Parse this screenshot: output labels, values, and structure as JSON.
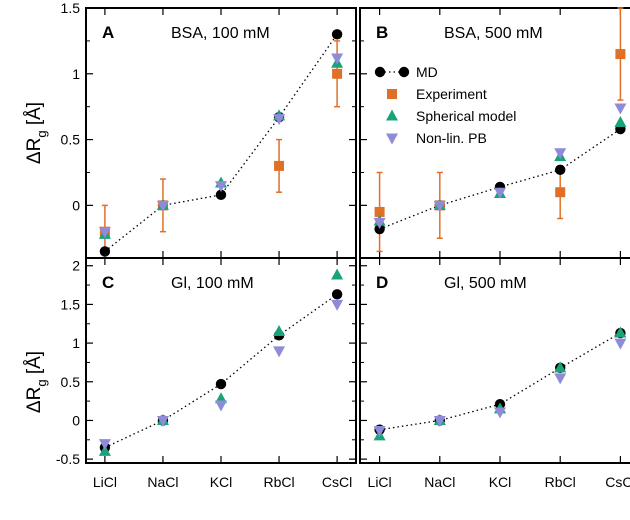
{
  "ylabel_main": "ΔR",
  "ylabel_sub": "g",
  "ylabel_unit": " [Å]",
  "categories": [
    "LiCl",
    "NaCl",
    "KCl",
    "RbCl",
    "CsCl"
  ],
  "legend": {
    "md": "MD",
    "experiment": "Experiment",
    "spherical": "Spherical model",
    "nonlin": "Non-lin. PB"
  },
  "colors": {
    "md": "#000000",
    "experiment": "#e07028",
    "spherical": "#1aa37a",
    "nonlin": "#8e8cd8"
  },
  "chart_data": [
    {
      "type": "scatter",
      "panel_letter": "A",
      "title": "BSA, 100 mM",
      "ylim": [
        -0.4,
        1.5
      ],
      "yticks": [
        0,
        0.5,
        1,
        1.5
      ],
      "ytick_labels": [
        "0",
        "0.5",
        "1",
        "1.5"
      ],
      "show_legend": false,
      "series": {
        "md": [
          -0.35,
          0.0,
          0.08,
          0.67,
          1.3
        ],
        "experiment": [
          -0.2,
          0.0,
          null,
          0.3,
          1.0
        ],
        "experiment_err": [
          0.2,
          0.2,
          null,
          0.2,
          0.25
        ],
        "spherical": [
          -0.22,
          0.0,
          0.17,
          0.68,
          1.08
        ],
        "nonlin": [
          -0.2,
          0.0,
          0.15,
          0.66,
          1.12
        ]
      }
    },
    {
      "type": "scatter",
      "panel_letter": "B",
      "title": "BSA, 500 mM",
      "ylim": [
        -0.4,
        1.5
      ],
      "yticks": [
        0,
        0.5,
        1,
        1.5
      ],
      "ytick_labels": [
        "",
        "",
        "",
        ""
      ],
      "show_legend": true,
      "series": {
        "md": [
          -0.18,
          0.0,
          0.14,
          0.27,
          0.58
        ],
        "experiment": [
          -0.05,
          0.0,
          null,
          0.1,
          1.15
        ],
        "experiment_err": [
          0.3,
          0.25,
          null,
          0.2,
          0.35
        ],
        "spherical": [
          -0.12,
          0.0,
          0.09,
          0.37,
          0.63
        ],
        "nonlin": [
          -0.13,
          0.0,
          0.1,
          0.4,
          0.74
        ]
      }
    },
    {
      "type": "scatter",
      "panel_letter": "C",
      "title": "Gl, 100 mM",
      "ylim": [
        -0.55,
        2.1
      ],
      "yticks": [
        -0.5,
        0,
        0.5,
        1,
        1.5,
        2
      ],
      "ytick_labels": [
        "-0.5",
        "0",
        "0.5",
        "1",
        "1.5",
        "2"
      ],
      "show_legend": false,
      "series": {
        "md": [
          -0.35,
          0.0,
          0.47,
          1.1,
          1.63
        ],
        "spherical": [
          -0.4,
          0.0,
          0.28,
          1.15,
          1.88
        ],
        "nonlin": [
          -0.3,
          0.0,
          0.2,
          0.9,
          1.5
        ]
      }
    },
    {
      "type": "scatter",
      "panel_letter": "D",
      "title": "Gl, 500 mM",
      "ylim": [
        -0.55,
        2.1
      ],
      "yticks": [
        -0.5,
        0,
        0.5,
        1,
        1.5,
        2
      ],
      "ytick_labels": [
        "",
        "",
        "",
        "",
        "",
        ""
      ],
      "show_legend": false,
      "series": {
        "md": [
          -0.12,
          0.0,
          0.21,
          0.68,
          1.13
        ],
        "spherical": [
          -0.2,
          0.0,
          0.15,
          0.68,
          1.13
        ],
        "nonlin": [
          -0.13,
          0.0,
          0.11,
          0.55,
          1.0
        ]
      }
    }
  ]
}
